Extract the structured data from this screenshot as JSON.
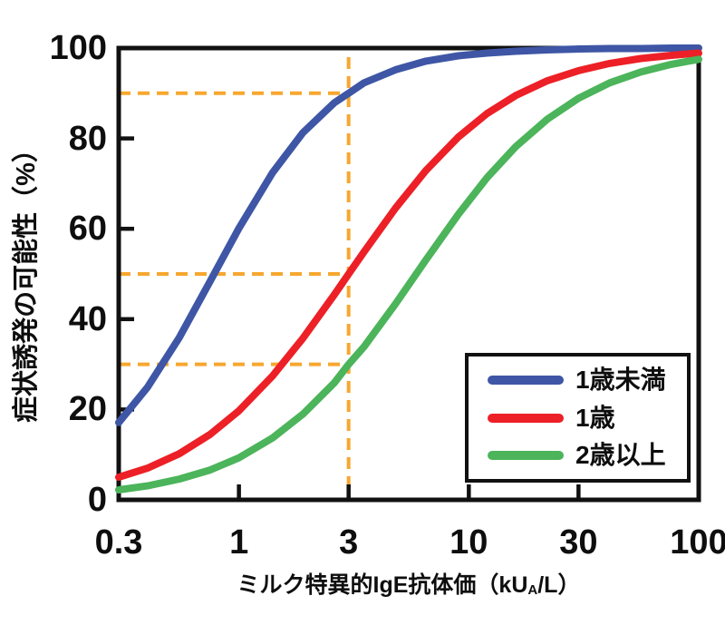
{
  "chart_data": {
    "type": "line",
    "x_scale": "log",
    "title": "",
    "xlabel": "ミルク特異的IgE抗体価（kUA/L）",
    "xlabel_parts": {
      "prefix": "ミルク特異的IgE抗体価（kU",
      "subscript": "A",
      "suffix": "/L）"
    },
    "ylabel": "症状誘発の可能性（%）",
    "xlim": [
      0.3,
      100
    ],
    "ylim": [
      0,
      100
    ],
    "x_ticks": [
      0.3,
      1,
      3,
      10,
      30,
      100
    ],
    "x_tick_labels": [
      "0.3",
      "1",
      "3",
      "10",
      "30",
      "100"
    ],
    "y_ticks": [
      0,
      20,
      40,
      60,
      80,
      100
    ],
    "y_tick_labels": [
      "0",
      "20",
      "40",
      "60",
      "80",
      "100"
    ],
    "grid": false,
    "frame_color": "#111111",
    "series": [
      {
        "name": "1歳未満",
        "color": "#3E56A5",
        "points": [
          [
            0.3,
            17.1
          ],
          [
            0.4,
            24.9
          ],
          [
            0.55,
            35.9
          ],
          [
            0.75,
            48.4
          ],
          [
            1,
            60.1
          ],
          [
            1.4,
            72.4
          ],
          [
            1.9,
            81.3
          ],
          [
            2.6,
            87.9
          ],
          [
            3,
            90
          ],
          [
            3.5,
            92.3
          ],
          [
            4.8,
            95.2
          ],
          [
            6.5,
            97.1
          ],
          [
            9,
            98.3
          ],
          [
            12,
            98.9
          ],
          [
            16,
            99.3
          ],
          [
            22,
            99.6
          ],
          [
            30,
            99.8
          ],
          [
            41,
            99.9
          ],
          [
            56,
            99.9
          ],
          [
            76,
            100
          ],
          [
            100,
            100
          ]
        ]
      },
      {
        "name": "1歳",
        "color": "#EC2026",
        "points": [
          [
            0.3,
            5
          ],
          [
            0.4,
            7
          ],
          [
            0.55,
            10.2
          ],
          [
            0.75,
            14.5
          ],
          [
            1,
            19.7
          ],
          [
            1.4,
            27.4
          ],
          [
            1.9,
            35.8
          ],
          [
            2.6,
            45.4
          ],
          [
            3,
            50
          ],
          [
            3.5,
            54.9
          ],
          [
            4.8,
            64.6
          ],
          [
            6.5,
            72.9
          ],
          [
            9,
            80.3
          ],
          [
            12,
            85.5
          ],
          [
            16,
            89.5
          ],
          [
            22,
            92.8
          ],
          [
            30,
            95
          ],
          [
            41,
            96.6
          ],
          [
            56,
            97.7
          ],
          [
            76,
            98.4
          ],
          [
            100,
            98.9
          ]
        ]
      },
      {
        "name": "2歳以上",
        "color": "#4CB45A",
        "points": [
          [
            0.3,
            2.2
          ],
          [
            0.4,
            3.1
          ],
          [
            0.55,
            4.6
          ],
          [
            0.75,
            6.6
          ],
          [
            1,
            9.3
          ],
          [
            1.4,
            13.7
          ],
          [
            1.9,
            19
          ],
          [
            2.6,
            25.9
          ],
          [
            3,
            30
          ],
          [
            3.5,
            33.9
          ],
          [
            4.8,
            43.4
          ],
          [
            6.5,
            53.1
          ],
          [
            9,
            63.2
          ],
          [
            12,
            71.3
          ],
          [
            16,
            78.2
          ],
          [
            22,
            84.3
          ],
          [
            30,
            88.9
          ],
          [
            41,
            92.3
          ],
          [
            56,
            94.7
          ],
          [
            76,
            96.4
          ],
          [
            100,
            97.5
          ]
        ]
      }
    ],
    "reference_lines": {
      "color": "#F7A72F",
      "items": [
        {
          "orientation": "horizontal",
          "y": 90,
          "x_from": 0.3,
          "x_to": 3
        },
        {
          "orientation": "horizontal",
          "y": 50,
          "x_from": 0.3,
          "x_to": 3
        },
        {
          "orientation": "horizontal",
          "y": 30,
          "x_from": 0.3,
          "x_to": 3
        },
        {
          "orientation": "vertical",
          "x": 3,
          "y_from": 0,
          "y_to": 98
        }
      ]
    },
    "legend": {
      "position": "lower-right",
      "entries": [
        "1歳未満",
        "1歳",
        "2歳以上"
      ]
    }
  }
}
